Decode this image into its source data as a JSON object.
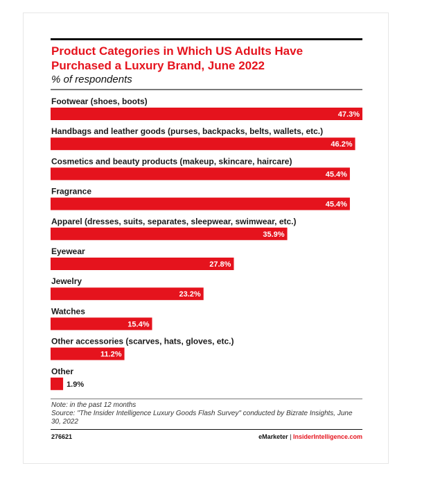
{
  "header": {
    "title": "Product Categories in Which US Adults Have Purchased a Luxury Brand, June 2022",
    "subtitle": "% of respondents"
  },
  "chart_data": {
    "type": "bar",
    "orientation": "horizontal",
    "categories": [
      "Footwear (shoes, boots)",
      "Handbags and leather goods (purses, backpacks, belts, wallets, etc.)",
      "Cosmetics and beauty products (makeup, skincare, haircare)",
      "Fragrance",
      "Apparel (dresses, suits, separates, sleepwear, swimwear, etc.)",
      "Eyewear",
      "Jewelry",
      "Watches",
      "Other accessories (scarves, hats, gloves, etc.)",
      "Other"
    ],
    "values": [
      47.3,
      46.2,
      45.4,
      45.4,
      35.9,
      27.8,
      23.2,
      15.4,
      11.2,
      1.9
    ],
    "value_labels": [
      "47.3%",
      "46.2%",
      "45.4%",
      "45.4%",
      "35.9%",
      "27.8%",
      "23.2%",
      "15.4%",
      "11.2%",
      "1.9%"
    ],
    "title": "Product Categories in Which US Adults Have Purchased a Luxury Brand, June 2022",
    "subtitle": "% of respondents",
    "xlim": [
      0,
      47.3
    ],
    "bar_color": "#e5131d",
    "grid": false
  },
  "footer": {
    "note_line1": "Note: in the past 12 months",
    "note_line2": "Source: \"The Insider Intelligence Luxury Goods Flash Survey\" conducted by Bizrate Insights, June 30, 2022",
    "chart_id": "276621",
    "brand_left": "eMarketer",
    "brand_sep": "|",
    "brand_right": "InsiderIntelligence.com"
  }
}
